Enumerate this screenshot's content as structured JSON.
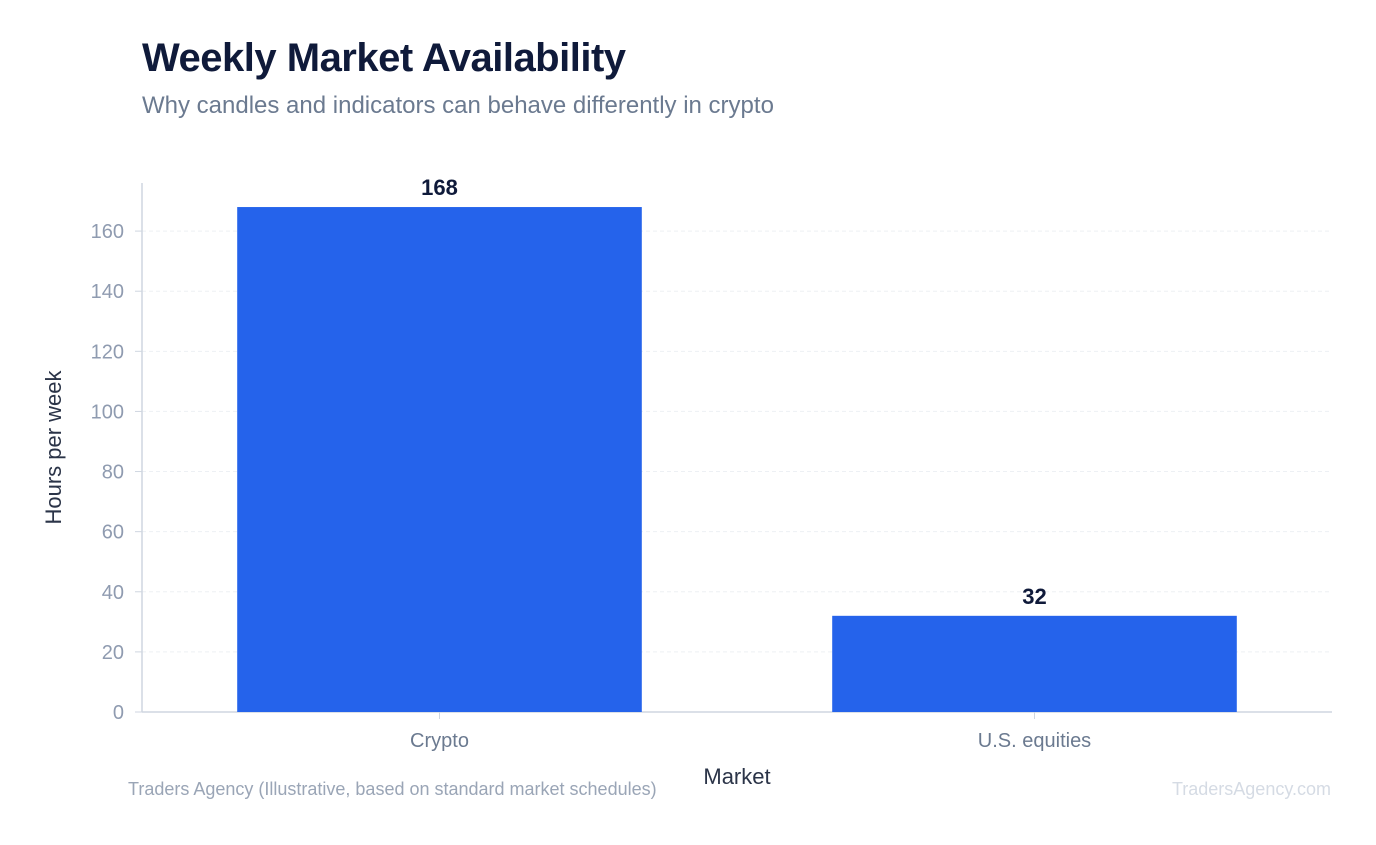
{
  "header": {
    "title": "Weekly Market Availability",
    "subtitle": "Why candles and indicators can behave differently in crypto"
  },
  "footer": {
    "source": "Traders Agency (Illustrative, based on standard market schedules)",
    "watermark": "TradersAgency.com"
  },
  "colors": {
    "bar": "#2563eb",
    "title": "#0f1a3a",
    "axis_text": "#8f9bb0",
    "axis_line": "#cfd6e0",
    "grid": "#edf0f4",
    "label": "#2b3448"
  },
  "chart_data": {
    "type": "bar",
    "title": "Weekly Market Availability",
    "subtitle": "Why candles and indicators can behave differently in crypto",
    "categories": [
      "Crypto",
      "U.S. equities"
    ],
    "values": [
      168,
      32
    ],
    "data_labels": [
      "168",
      "32"
    ],
    "xlabel": "Market",
    "ylabel": "Hours per week",
    "ylim": [
      0,
      176
    ],
    "yticks": [
      0,
      20,
      40,
      60,
      80,
      100,
      120,
      140,
      160
    ],
    "grid": true,
    "legend": "none"
  }
}
